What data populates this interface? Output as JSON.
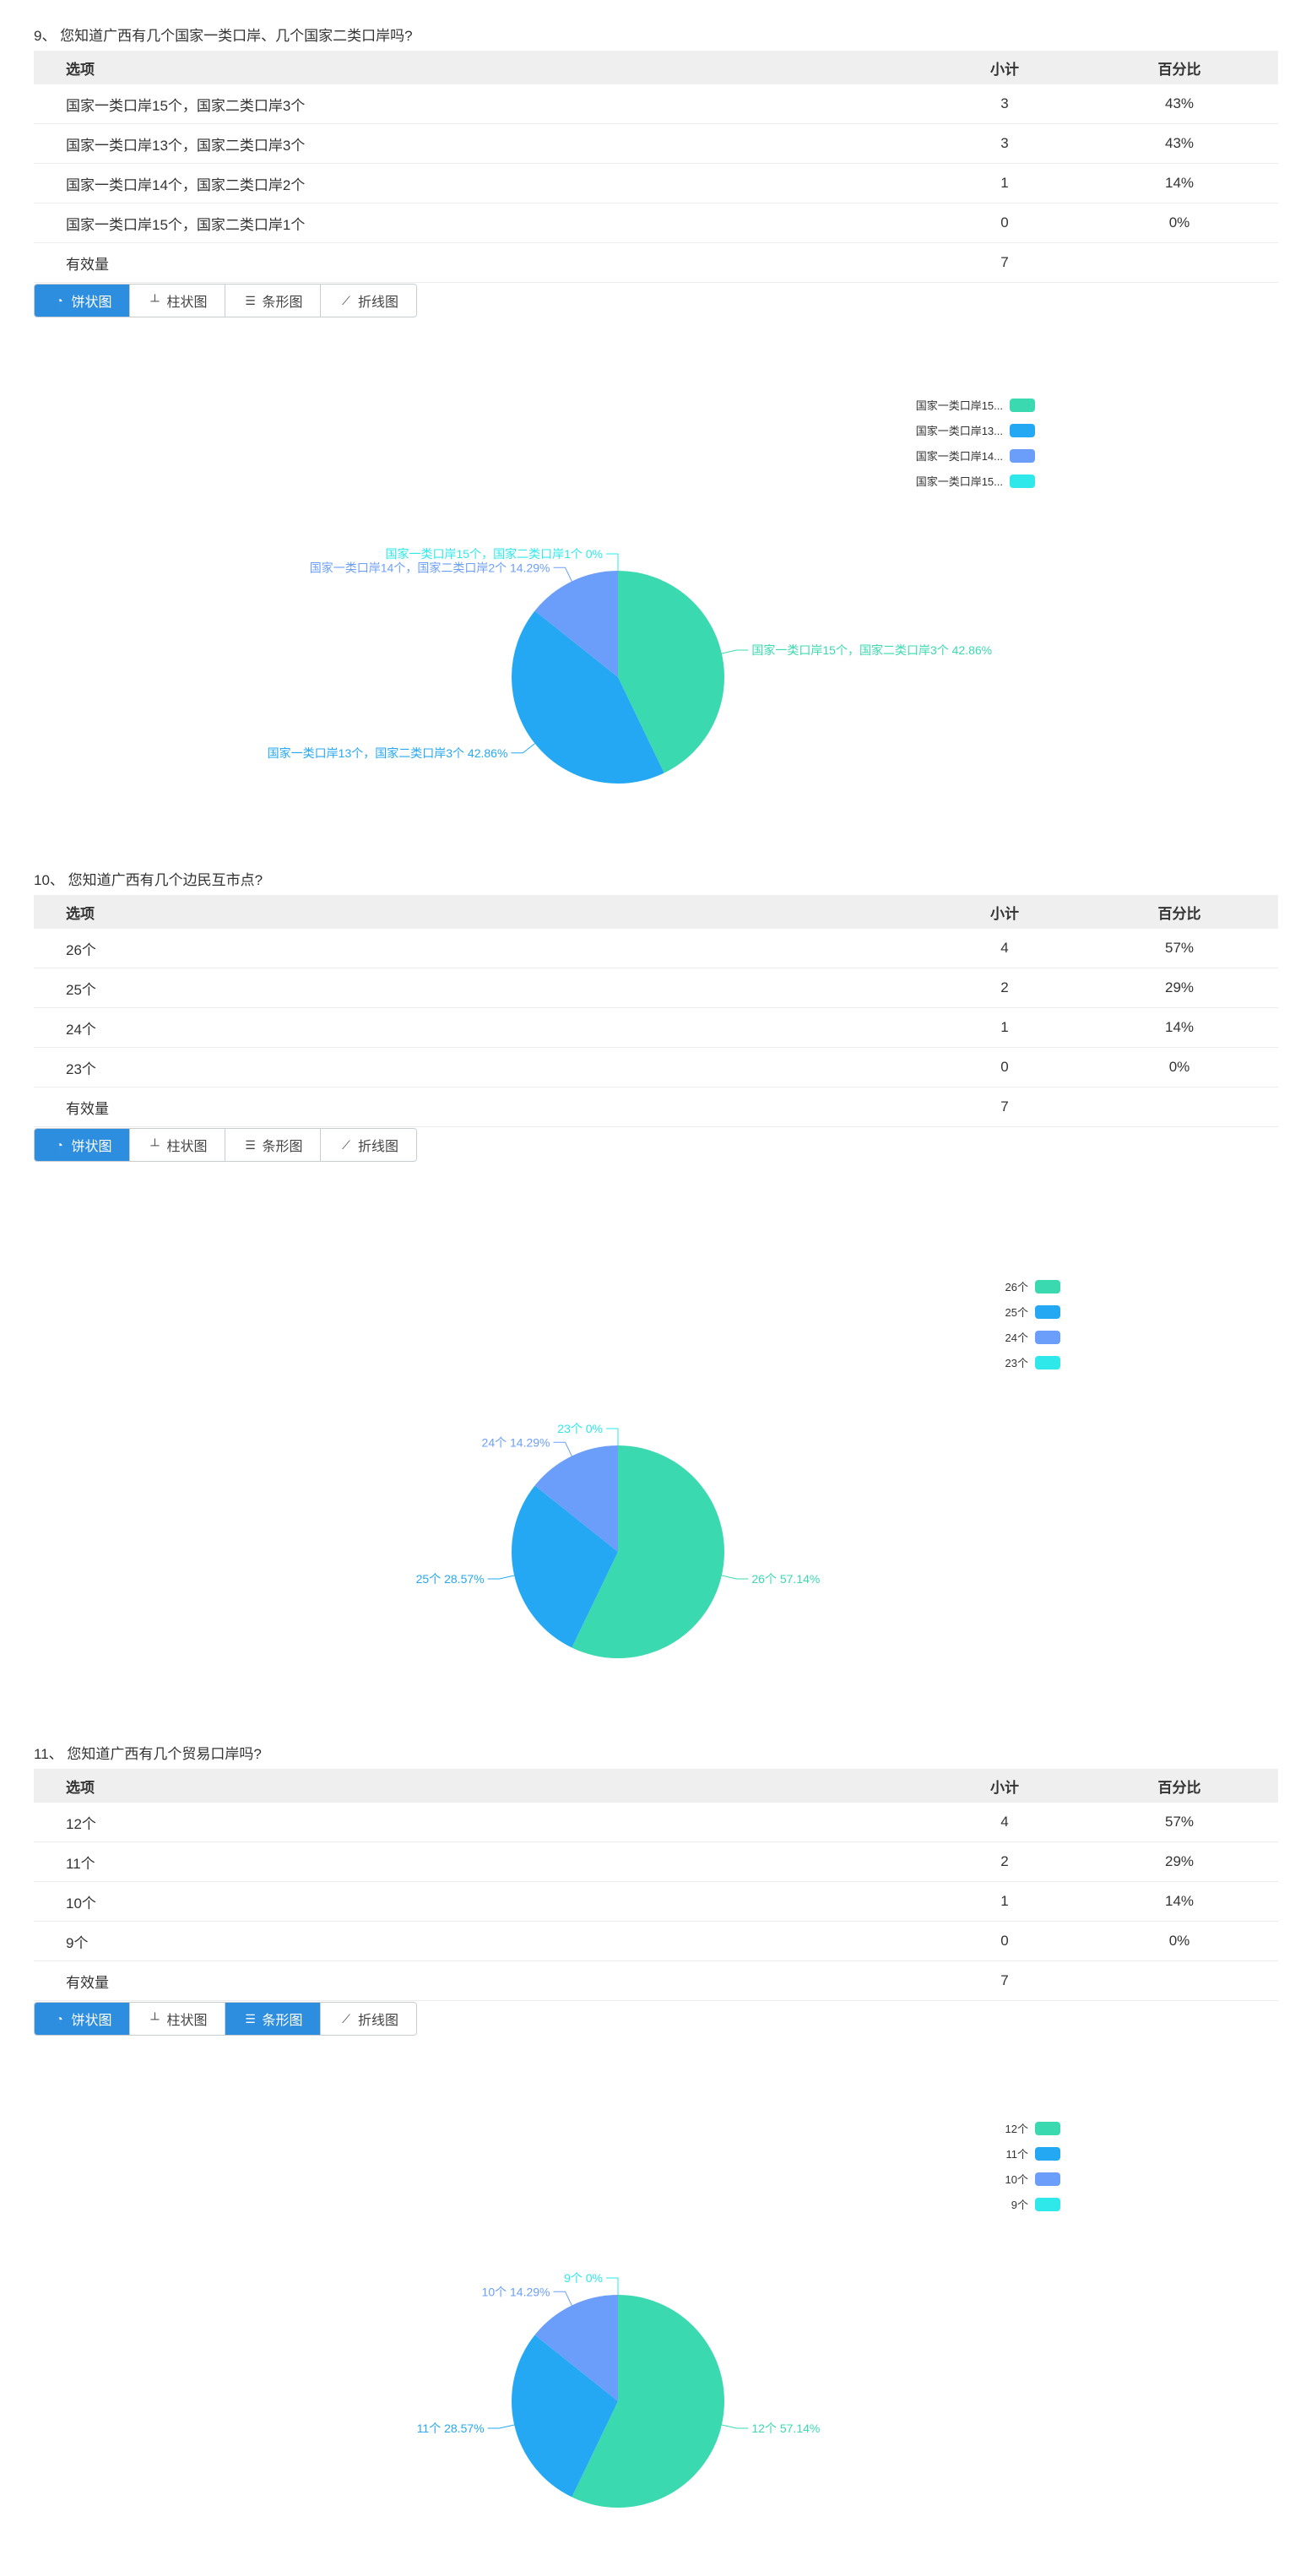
{
  "colors": [
    "#3ad9b0",
    "#24a8f3",
    "#6b9efa",
    "#2ee8ea"
  ],
  "buttons": {
    "pie": "饼状图",
    "bar": "柱状图",
    "hbar": "条形图",
    "line": "折线图"
  },
  "icons": {
    "pie": "pie-chart-icon",
    "bar": "bar-chart-icon",
    "hbar": "horizontal-bar-chart-icon",
    "line": "line-chart-icon"
  },
  "questions": [
    {
      "title": "9、 您知道广西有几个国家一类口岸、几个国家二类口岸吗?",
      "headers": {
        "option": "选项",
        "count": "小计",
        "percent": "百分比"
      },
      "rows": [
        {
          "option": "国家一类口岸15个，国家二类口岸3个",
          "count": "3",
          "percent": "43%"
        },
        {
          "option": "国家一类口岸13个，国家二类口岸3个",
          "count": "3",
          "percent": "43%"
        },
        {
          "option": "国家一类口岸14个，国家二类口岸2个",
          "count": "1",
          "percent": "14%"
        },
        {
          "option": "国家一类口岸15个，国家二类口岸1个",
          "count": "0",
          "percent": "0%"
        }
      ],
      "total": {
        "label": "有效量",
        "count": "7"
      },
      "active_buttons": [
        "pie"
      ]
    },
    {
      "title": "10、 您知道广西有几个边民互市点?",
      "headers": {
        "option": "选项",
        "count": "小计",
        "percent": "百分比"
      },
      "rows": [
        {
          "option": "26个",
          "count": "4",
          "percent": "57%"
        },
        {
          "option": "25个",
          "count": "2",
          "percent": "29%"
        },
        {
          "option": "24个",
          "count": "1",
          "percent": "14%"
        },
        {
          "option": "23个",
          "count": "0",
          "percent": "0%"
        }
      ],
      "total": {
        "label": "有效量",
        "count": "7"
      },
      "active_buttons": [
        "pie"
      ]
    },
    {
      "title": "11、 您知道广西有几个贸易口岸吗?",
      "headers": {
        "option": "选项",
        "count": "小计",
        "percent": "百分比"
      },
      "rows": [
        {
          "option": "12个",
          "count": "4",
          "percent": "57%"
        },
        {
          "option": "11个",
          "count": "2",
          "percent": "29%"
        },
        {
          "option": "10个",
          "count": "1",
          "percent": "14%"
        },
        {
          "option": "9个",
          "count": "0",
          "percent": "0%"
        }
      ],
      "total": {
        "label": "有效量",
        "count": "7"
      },
      "active_buttons": [
        "pie",
        "hbar"
      ]
    }
  ],
  "chart_data": [
    {
      "type": "pie",
      "legend": [
        "国家一类口岸15...",
        "国家一类口岸13...",
        "国家一类口岸14...",
        "国家一类口岸15..."
      ],
      "legend_position": "top-right",
      "slices": [
        {
          "label": "国家一类口岸15个，国家二类口岸3个 42.86%",
          "value": 3,
          "percent": 42.86
        },
        {
          "label": "国家一类口岸13个，国家二类口岸3个 42.86%",
          "value": 3,
          "percent": 42.86
        },
        {
          "label": "国家一类口岸14个，国家二类口岸2个 14.29%",
          "value": 1,
          "percent": 14.29
        },
        {
          "label": "国家一类口岸15个，国家二类口岸1个 0%",
          "value": 0,
          "percent": 0
        }
      ]
    },
    {
      "type": "pie",
      "legend": [
        "26个",
        "25个",
        "24个",
        "23个"
      ],
      "legend_position": "top-right",
      "slices": [
        {
          "label": "26个 57.14%",
          "value": 4,
          "percent": 57.14
        },
        {
          "label": "25个 28.57%",
          "value": 2,
          "percent": 28.57
        },
        {
          "label": "24个 14.29%",
          "value": 1,
          "percent": 14.29
        },
        {
          "label": "23个 0%",
          "value": 0,
          "percent": 0
        }
      ]
    },
    {
      "type": "pie",
      "legend": [
        "12个",
        "11个",
        "10个",
        "9个"
      ],
      "legend_position": "top-right",
      "slices": [
        {
          "label": "12个 57.14%",
          "value": 4,
          "percent": 57.14
        },
        {
          "label": "11个 28.57%",
          "value": 2,
          "percent": 28.57
        },
        {
          "label": "10个 14.29%",
          "value": 1,
          "percent": 14.29
        },
        {
          "label": "9个 0%",
          "value": 0,
          "percent": 0
        }
      ]
    }
  ]
}
